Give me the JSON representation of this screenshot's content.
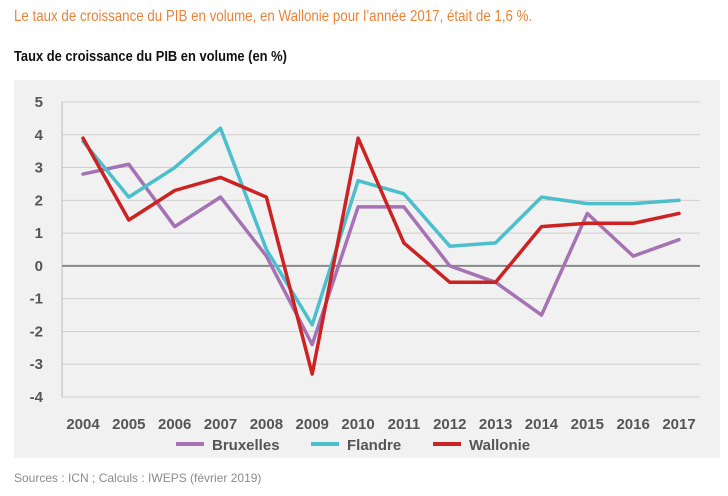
{
  "headline": "Le taux de croissance du PIB en volume, en Wallonie pour l’année 2017, était de 1,6 %.",
  "source": "Sources : ICN ; Calculs : IWEPS (février 2019)",
  "colors": {
    "headline": "#e8833a",
    "panel": "#f1f1f1",
    "grid": "#cfcfcf",
    "zero_line": "#888888"
  },
  "chart_data": {
    "type": "line",
    "title": "Taux de croissance du PIB en volume (en %)",
    "xlabel": "",
    "ylabel": "",
    "categories": [
      "2004",
      "2005",
      "2006",
      "2007",
      "2008",
      "2009",
      "2010",
      "2011",
      "2012",
      "2013",
      "2014",
      "2015",
      "2016",
      "2017"
    ],
    "ylim": [
      -4,
      5
    ],
    "yticks": [
      5,
      4,
      3,
      2,
      1,
      0,
      -1,
      -2,
      -3,
      -4
    ],
    "grid": true,
    "legend_position": "bottom",
    "series": [
      {
        "name": "Bruxelles",
        "color": "#a572b4",
        "values": [
          2.8,
          3.1,
          1.2,
          2.1,
          0.3,
          -2.4,
          1.8,
          1.8,
          0.0,
          -0.5,
          -1.5,
          1.6,
          0.3,
          0.8
        ]
      },
      {
        "name": "Flandre",
        "color": "#4bbfcc",
        "values": [
          3.8,
          2.1,
          3.0,
          4.2,
          0.5,
          -1.8,
          2.6,
          2.2,
          0.6,
          0.7,
          2.1,
          1.9,
          1.9,
          2.0
        ]
      },
      {
        "name": "Wallonie",
        "color": "#cc2222",
        "values": [
          3.9,
          1.4,
          2.3,
          2.7,
          2.1,
          -3.3,
          3.9,
          0.7,
          -0.5,
          -0.5,
          1.2,
          1.3,
          1.3,
          1.6
        ]
      }
    ]
  }
}
